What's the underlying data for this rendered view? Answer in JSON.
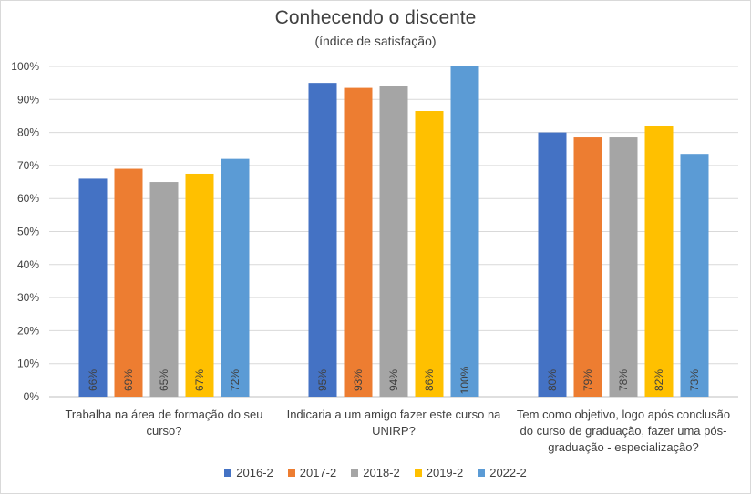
{
  "chart_data": {
    "type": "bar",
    "title": "Conhecendo  o discente",
    "subtitle": "(índice de satisfação)",
    "categories": [
      [
        "Trabalha na área de formação do seu",
        "curso?"
      ],
      [
        "Indicaria a um amigo fazer este curso na",
        "UNIRP?"
      ],
      [
        "Tem como objetivo, logo após  conclusão",
        "do curso de graduação, fazer uma pós-",
        "graduação - especialização?"
      ]
    ],
    "series": [
      {
        "name": "2016-2",
        "color": "#4472c4",
        "values": [
          66,
          95,
          80
        ],
        "labels": [
          "66%",
          "95%",
          "80%"
        ]
      },
      {
        "name": "2017-2",
        "color": "#ed7d31",
        "values": [
          69,
          93.5,
          78.5
        ],
        "labels": [
          "69%",
          "93%",
          "79%"
        ]
      },
      {
        "name": "2018-2",
        "color": "#a5a5a5",
        "values": [
          65,
          94,
          78.5
        ],
        "labels": [
          "65%",
          "94%",
          "78%"
        ]
      },
      {
        "name": "2019-2",
        "color": "#ffc000",
        "values": [
          67.5,
          86.5,
          82
        ],
        "labels": [
          "67%",
          "86%",
          "82%"
        ]
      },
      {
        "name": "2022-2",
        "color": "#5b9bd5",
        "values": [
          72,
          100,
          73.5
        ],
        "labels": [
          "72%",
          "100%",
          "73%"
        ]
      }
    ],
    "y_ticks": [
      "0%",
      "10%",
      "20%",
      "30%",
      "40%",
      "50%",
      "60%",
      "70%",
      "80%",
      "90%",
      "100%"
    ],
    "ylim": [
      0,
      100
    ],
    "grid": true,
    "legend": "bottom"
  }
}
